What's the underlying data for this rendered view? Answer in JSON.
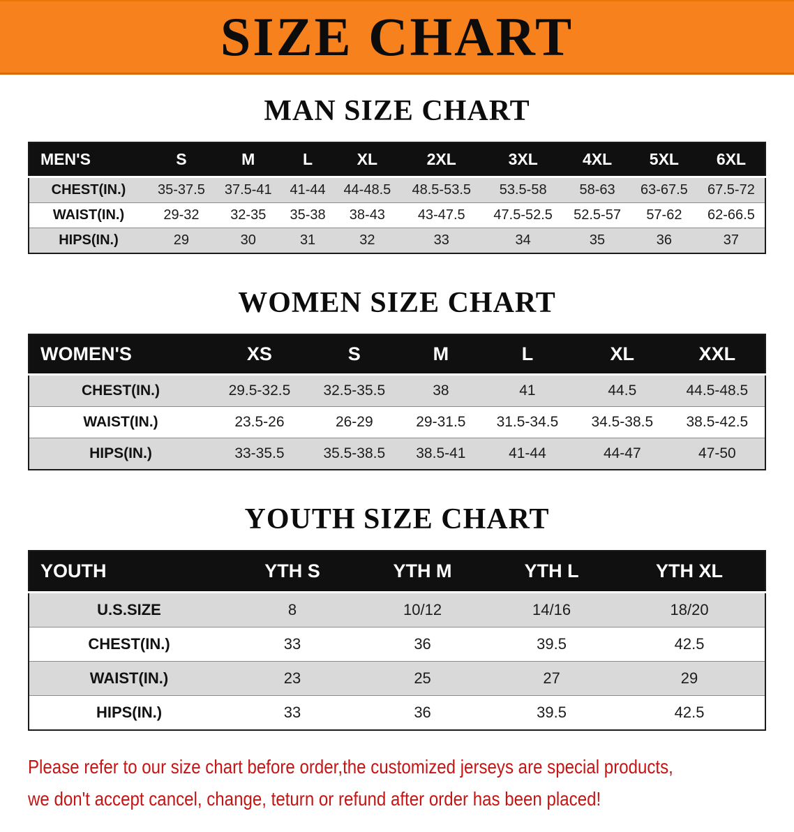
{
  "banner": {
    "title": "SIZE CHART",
    "bg_color": "#f6811d"
  },
  "sections": [
    {
      "heading": "MAN SIZE CHART",
      "table": {
        "header": [
          "MEN'S",
          "S",
          "M",
          "L",
          "XL",
          "2XL",
          "3XL",
          "4XL",
          "5XL",
          "6XL"
        ],
        "rows": [
          [
            "CHEST(IN.)",
            "35-37.5",
            "37.5-41",
            "41-44",
            "44-48.5",
            "48.5-53.5",
            "53.5-58",
            "58-63",
            "63-67.5",
            "67.5-72"
          ],
          [
            "WAIST(IN.)",
            "29-32",
            "32-35",
            "35-38",
            "38-43",
            "43-47.5",
            "47.5-52.5",
            "52.5-57",
            "57-62",
            "62-66.5"
          ],
          [
            "HIPS(IN.)",
            "29",
            "30",
            "31",
            "32",
            "33",
            "34",
            "35",
            "36",
            "37"
          ]
        ]
      }
    },
    {
      "heading": "WOMEN SIZE CHART",
      "table": {
        "header": [
          "WOMEN'S",
          "XS",
          "S",
          "M",
          "L",
          "XL",
          "XXL"
        ],
        "rows": [
          [
            "CHEST(IN.)",
            "29.5-32.5",
            "32.5-35.5",
            "38",
            "41",
            "44.5",
            "44.5-48.5"
          ],
          [
            "WAIST(IN.)",
            "23.5-26",
            "26-29",
            "29-31.5",
            "31.5-34.5",
            "34.5-38.5",
            "38.5-42.5"
          ],
          [
            "HIPS(IN.)",
            "33-35.5",
            "35.5-38.5",
            "38.5-41",
            "41-44",
            "44-47",
            "47-50"
          ]
        ]
      }
    },
    {
      "heading": "YOUTH SIZE CHART",
      "table": {
        "header": [
          "YOUTH",
          "YTH S",
          "YTH M",
          "YTH L",
          "YTH XL"
        ],
        "rows": [
          [
            "U.S.SIZE",
            "8",
            "10/12",
            "14/16",
            "18/20"
          ],
          [
            "CHEST(IN.)",
            "33",
            "36",
            "39.5",
            "42.5"
          ],
          [
            "WAIST(IN.)",
            "23",
            "25",
            "27",
            "29"
          ],
          [
            "HIPS(IN.)",
            "33",
            "36",
            "39.5",
            "42.5"
          ]
        ]
      }
    }
  ],
  "footer": {
    "color": "#c41414",
    "lines": [
      "Please refer to our size chart before order,the customized jerseys are special products,",
      "we don't accept cancel, change, teturn or refund after order has been placed!"
    ]
  }
}
